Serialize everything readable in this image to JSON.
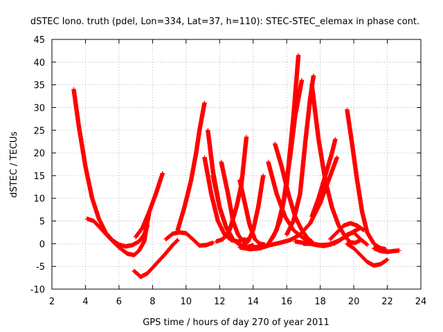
{
  "chart_data": {
    "type": "scatter",
    "title": "dSTEC Iono. truth (pdel, Lon=334, Lat=37, h=110): STEC-STEC_elemax in phase cont.",
    "xlabel": "GPS time / hours of day 270 of year 2011",
    "ylabel": "dSTEC  / TECUs",
    "xlim": [
      2,
      24
    ],
    "ylim": [
      -10,
      45
    ],
    "xticks": [
      2,
      4,
      6,
      8,
      10,
      12,
      14,
      16,
      18,
      20,
      22,
      24
    ],
    "yticks": [
      -10,
      -5,
      0,
      5,
      10,
      15,
      20,
      25,
      30,
      35,
      40,
      45
    ],
    "grid": true,
    "marker": "+",
    "color": "#ff0000",
    "series": [
      {
        "x": [
          3.3,
          3.6,
          4.0,
          4.4,
          4.8,
          5.2,
          5.6,
          6.0,
          6.4,
          6.8,
          7.2,
          7.5,
          7.7
        ],
        "y": [
          34,
          26,
          17,
          10,
          5.5,
          2.5,
          0.8,
          -0.2,
          -0.6,
          -0.3,
          0.5,
          2.0,
          4.0
        ]
      },
      {
        "x": [
          4.1,
          4.5,
          5.0,
          5.5,
          6.0,
          6.5,
          6.9,
          7.2,
          7.5,
          7.8
        ],
        "y": [
          5.5,
          5,
          3,
          1,
          -0.8,
          -2.2,
          -2.5,
          -1.5,
          0.5,
          7
        ]
      },
      {
        "x": [
          7.0,
          7.4,
          7.8,
          8.2,
          8.6
        ],
        "y": [
          1.5,
          3.5,
          7,
          11,
          15.5
        ]
      },
      {
        "x": [
          6.9,
          7.3,
          7.7,
          8.2,
          8.7,
          9.2,
          9.5
        ],
        "y": [
          -6,
          -7.3,
          -6.5,
          -4.5,
          -2.5,
          -0.3,
          0.8
        ]
      },
      {
        "x": [
          8.8,
          9.2,
          9.6,
          10.0,
          10.4,
          10.8,
          11.2,
          11.6
        ],
        "y": [
          1,
          2.2,
          2.5,
          2.3,
          1.0,
          -0.4,
          -0.3,
          0.2
        ]
      },
      {
        "x": [
          9.5,
          9.9,
          10.3,
          10.6,
          10.8,
          11.0,
          11.1
        ],
        "y": [
          3,
          8,
          14,
          20,
          25,
          29,
          31
        ]
      },
      {
        "x": [
          11.3,
          11.6,
          12.0,
          12.4,
          12.8,
          13.2,
          13.6,
          14.0
        ],
        "y": [
          25,
          16,
          8,
          3.5,
          1,
          -0.3,
          -0.8,
          -0.3
        ]
      },
      {
        "x": [
          11.1,
          11.5,
          11.9,
          12.3,
          12.7,
          13.1,
          13.5
        ],
        "y": [
          19,
          11,
          5,
          2,
          0.8,
          0.5,
          1
        ]
      },
      {
        "x": [
          11.6,
          12.0,
          12.4,
          12.8,
          13.2,
          13.6,
          14.0,
          14.4
        ],
        "y": [
          15,
          8,
          3.5,
          1,
          -0.2,
          -0.8,
          -1,
          -0.5
        ]
      },
      {
        "x": [
          12.1,
          12.5,
          12.8,
          13.1,
          13.4,
          13.7
        ],
        "y": [
          18,
          11,
          5,
          2,
          0.5,
          1
        ]
      },
      {
        "x": [
          11.8,
          12.2,
          12.6,
          13.0,
          13.3,
          13.6
        ],
        "y": [
          0.5,
          1,
          3,
          8,
          13,
          23.5
        ]
      },
      {
        "x": [
          13.2,
          13.5,
          13.8,
          14.1,
          14.4,
          14.7
        ],
        "y": [
          14,
          9,
          4,
          1,
          0,
          -0.2
        ]
      },
      {
        "x": [
          13.4,
          13.7,
          14.0,
          14.3,
          14.6
        ],
        "y": [
          -0.5,
          0.5,
          3,
          8,
          15
        ]
      },
      {
        "x": [
          13.2,
          13.8,
          14.4,
          15.0,
          15.6,
          16.2,
          16.8,
          17.4,
          18.0,
          18.6,
          19.0
        ],
        "y": [
          -0.8,
          -1.2,
          -1,
          -0.3,
          0.2,
          0.8,
          2,
          4.5,
          9,
          15,
          19
        ]
      },
      {
        "x": [
          14.8,
          15.2,
          15.6,
          16.0,
          16.4,
          16.7
        ],
        "y": [
          -0.5,
          1.5,
          5,
          13,
          28,
          41.5
        ]
      },
      {
        "x": [
          15.0,
          15.4,
          15.8,
          16.2,
          16.5,
          16.9
        ],
        "y": [
          0.5,
          3,
          9,
          19,
          28,
          36
        ]
      },
      {
        "x": [
          15.3,
          15.7,
          16.1,
          16.5,
          16.9,
          17.3,
          17.5
        ],
        "y": [
          22,
          17,
          11,
          6,
          3,
          1,
          0.5
        ]
      },
      {
        "x": [
          14.9,
          15.4,
          15.9,
          16.4,
          16.9,
          17.3,
          17.5
        ],
        "y": [
          18,
          11,
          6,
          3,
          1.5,
          0.5,
          0.5
        ]
      },
      {
        "x": [
          16.0,
          16.4,
          16.8,
          17.1,
          17.4,
          17.6
        ],
        "y": [
          2,
          5,
          11,
          22,
          32,
          37
        ]
      },
      {
        "x": [
          17.5,
          17.9,
          18.3,
          18.7,
          19.1,
          19.5,
          19.8,
          20.1,
          20.4
        ],
        "y": [
          35,
          23,
          14,
          8,
          4,
          1.5,
          0.3,
          0.2,
          0.8
        ]
      },
      {
        "x": [
          17.0,
          17.4,
          17.8,
          18.2,
          18.6,
          19.0
        ],
        "y": [
          0,
          0,
          -0.3,
          -0.5,
          -0.2,
          0.5
        ]
      },
      {
        "x": [
          17.5,
          17.9,
          18.3,
          18.7,
          18.9
        ],
        "y": [
          6,
          10,
          15,
          20,
          23
        ]
      },
      {
        "x": [
          16.5,
          17.0,
          17.5,
          18.0,
          18.5,
          19.0,
          19.5,
          19.9,
          20.4
        ],
        "y": [
          0.5,
          0.2,
          0,
          -0.3,
          -0.2,
          0.5,
          1.5,
          2.5,
          3.5
        ]
      },
      {
        "x": [
          18.6,
          19.0,
          19.4,
          19.8,
          20.2,
          20.6
        ],
        "y": [
          1,
          2.5,
          4,
          4.5,
          4,
          3
        ]
      },
      {
        "x": [
          18.8,
          19.2,
          19.6,
          20.0,
          20.4,
          20.8
        ],
        "y": [
          0,
          0.8,
          2,
          2.5,
          1,
          -0.2
        ]
      },
      {
        "x": [
          19.6,
          19.9,
          20.2,
          20.5,
          20.8,
          21.2,
          21.6,
          21.9
        ],
        "y": [
          29.5,
          22,
          14,
          7,
          2.5,
          0,
          -1,
          -1.2
        ]
      },
      {
        "x": [
          19.6,
          20.0,
          20.4,
          20.8,
          21.2,
          21.6,
          22.0
        ],
        "y": [
          0,
          -1,
          -2.5,
          -4,
          -4.8,
          -4.5,
          -3.5
        ]
      },
      {
        "x": [
          21.2,
          21.6,
          22.0,
          22.4,
          22.7
        ],
        "y": [
          -1,
          -1.6,
          -1.8,
          -1.6,
          -1.5
        ]
      }
    ]
  }
}
